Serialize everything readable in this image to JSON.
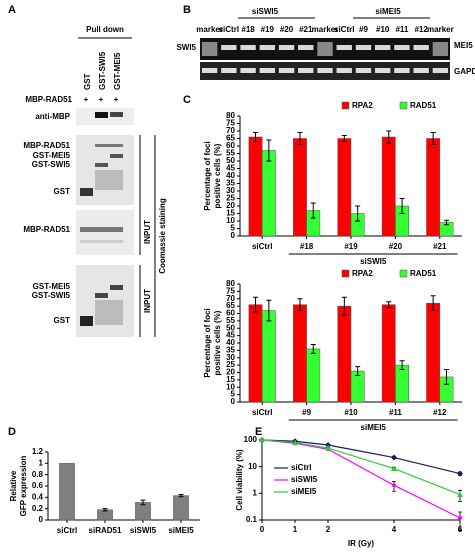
{
  "panel_labels": [
    "A",
    "B",
    "C",
    "D",
    "E"
  ],
  "panel_a": {
    "header": "Pull down",
    "lanes": [
      "GST",
      "GST-SWI5",
      "GST-MEI5"
    ],
    "row_label": "MBP-RAD51",
    "row_marks": [
      "+",
      "+",
      "+"
    ],
    "blot_label": "anti-MBP",
    "gel1_labels": [
      "MBP-RAD51",
      "GST-MEI5",
      "GST-SWI5",
      "GST"
    ],
    "gel2_labels": [
      "MBP-RAD51"
    ],
    "gel3_labels": [
      "GST-MEI5",
      "GST-SWI5",
      "GST"
    ],
    "input_labels": [
      "INPUT",
      "INPUT"
    ],
    "side_label": "Coomassie staining"
  },
  "panel_b": {
    "groups": [
      "siSWI5",
      "siMEI5"
    ],
    "lanes": [
      "marker",
      "siCtrl",
      "#18",
      "#19",
      "#20",
      "#21",
      "marker",
      "siCtrl",
      "#9",
      "#10",
      "#11",
      "#12",
      "marker"
    ],
    "left_label": "SWI5",
    "right_labels": [
      "MEI5",
      "GAPDH"
    ]
  },
  "chart_data": [
    {
      "type": "bar",
      "ylabel": [
        "Percentage of foci",
        "positive cells (%)"
      ],
      "categories": [
        "siCtrl",
        "#18",
        "#19",
        "#20",
        "#21"
      ],
      "group_label": "siSWI5",
      "series": [
        {
          "name": "RPA2",
          "color": "#ff0000",
          "values": [
            66,
            65,
            65,
            66,
            65
          ],
          "errors": [
            3,
            4,
            2,
            4,
            4
          ]
        },
        {
          "name": "RAD51",
          "color": "#33ff33",
          "values": [
            57,
            17,
            15,
            20,
            9
          ],
          "errors": [
            7,
            5,
            5,
            5,
            1.5
          ]
        }
      ],
      "ylim": [
        0,
        80
      ],
      "yticks": [
        0,
        5,
        10,
        15,
        20,
        25,
        30,
        35,
        40,
        45,
        50,
        55,
        60,
        65,
        70,
        75,
        80
      ],
      "legend": "top-right"
    },
    {
      "type": "bar",
      "ylabel": [
        "Percentage of foci",
        "positive cells (%)"
      ],
      "categories": [
        "siCtrl",
        "#9",
        "#10",
        "#11",
        "#12"
      ],
      "group_label": "siMEI5",
      "series": [
        {
          "name": "RPA2",
          "color": "#ff0000",
          "values": [
            66,
            66,
            65,
            66,
            67
          ],
          "errors": [
            5,
            4,
            6,
            2,
            5
          ]
        },
        {
          "name": "RAD51",
          "color": "#33ff33",
          "values": [
            62,
            36,
            21,
            25,
            17
          ],
          "errors": [
            7,
            3,
            3,
            3,
            5
          ]
        }
      ],
      "ylim": [
        0,
        80
      ],
      "yticks": [
        0,
        5,
        10,
        15,
        20,
        25,
        30,
        35,
        40,
        45,
        50,
        55,
        60,
        65,
        70,
        75,
        80
      ],
      "legend": "top-right"
    },
    {
      "type": "bar",
      "ylabel": [
        "Relative",
        "GFP expression"
      ],
      "categories": [
        "siCtrl",
        "siRAD51",
        "siSWI5",
        "siMEI5"
      ],
      "series": [
        {
          "name": null,
          "color": "#808080",
          "values": [
            1,
            0.18,
            0.31,
            0.43
          ],
          "errors": [
            0,
            0.02,
            0.04,
            0.02
          ]
        }
      ],
      "ylim": [
        0,
        1.2
      ],
      "yticks": [
        0,
        0.2,
        0.4,
        0.6,
        0.8,
        1,
        1.2
      ]
    },
    {
      "type": "line",
      "ylabel": [
        "Cell viability (%)"
      ],
      "xlabel": "IR (Gy)",
      "log_y": true,
      "x": [
        0,
        1,
        2,
        4,
        6
      ],
      "series": [
        {
          "name": "siCtrl",
          "color": "#1a1a66",
          "marker": "diamond",
          "values": [
            100,
            90,
            65,
            22,
            5.5
          ],
          "errors": [
            0,
            3,
            3,
            2,
            0.8
          ]
        },
        {
          "name": "siSWI5",
          "color": "#ff00ff",
          "marker": "circle",
          "values": [
            100,
            75,
            45,
            2,
            0.12
          ],
          "errors": [
            0,
            3,
            3,
            0.8,
            0.08
          ]
        },
        {
          "name": "siMEI5",
          "color": "#33cc33",
          "marker": "triangle",
          "values": [
            100,
            80,
            50,
            8.5,
            0.9
          ],
          "errors": [
            0,
            3,
            3,
            1,
            0.4
          ]
        }
      ],
      "xlim": [
        0,
        6
      ],
      "xticks": [
        0,
        1,
        2,
        4,
        6
      ],
      "ylim": [
        0.1,
        100
      ],
      "yticks": [
        0.1,
        1,
        10,
        100
      ],
      "legend": "center-left"
    }
  ]
}
